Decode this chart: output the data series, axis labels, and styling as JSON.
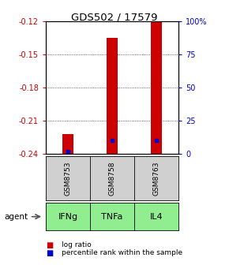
{
  "title": "GDS502 / 17579",
  "samples": [
    "GSM8753",
    "GSM8758",
    "GSM8763"
  ],
  "agents": [
    "IFNg",
    "TNFa",
    "IL4"
  ],
  "y_min": -0.24,
  "y_max": -0.12,
  "left_yticks": [
    -0.12,
    -0.15,
    -0.18,
    -0.21,
    -0.24
  ],
  "right_yticks": [
    100,
    75,
    50,
    25,
    0
  ],
  "log_ratios": [
    -0.222,
    -0.135,
    -0.12
  ],
  "log_ratio_base": -0.24,
  "percentile_ranks_value": [
    -0.238,
    -0.228,
    -0.228
  ],
  "bar_color": "#cc0000",
  "percentile_color": "#0000cc",
  "sample_box_color": "#d0d0d0",
  "agent_box_color": "#90ee90",
  "legend_log_ratio": "log ratio",
  "legend_percentile": "percentile rank within the sample",
  "agent_label": "agent",
  "title_color": "#000000",
  "left_axis_color": "#cc0000",
  "right_axis_color": "#0000cc",
  "bar_width": 0.25
}
